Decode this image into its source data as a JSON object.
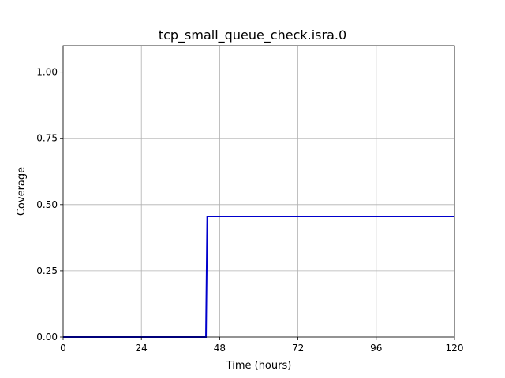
{
  "chart_data": {
    "type": "line",
    "title": "tcp_small_queue_check.isra.0",
    "xlabel": "Time (hours)",
    "ylabel": "Coverage",
    "xlim": [
      0,
      120
    ],
    "ylim": [
      0,
      1.1
    ],
    "x_ticks": [
      0,
      24,
      48,
      72,
      96,
      120
    ],
    "x_tick_labels": [
      "0",
      "24",
      "48",
      "72",
      "96",
      "120"
    ],
    "y_ticks": [
      0,
      0.25,
      0.5,
      0.75,
      1.0
    ],
    "y_tick_labels": [
      "0.00",
      "0.25",
      "0.50",
      "0.75",
      "1.00"
    ],
    "grid": true,
    "legend": "none",
    "series": [
      {
        "color": "#0000cc",
        "x": [
          0,
          43.8,
          44.2,
          120
        ],
        "y": [
          0,
          0,
          0.455,
          0.455
        ]
      }
    ]
  }
}
